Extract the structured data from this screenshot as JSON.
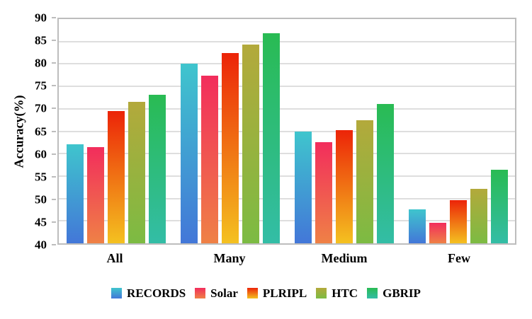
{
  "colors": {
    "background": "#ffffff",
    "plot_border": "#bdbdbd",
    "gridline": "#dedede",
    "text": "#000000"
  },
  "chart_data": {
    "type": "bar",
    "title": "",
    "xlabel": "",
    "ylabel": "Accuracy(%)",
    "ylim": [
      40,
      90
    ],
    "yticks": [
      40,
      45,
      50,
      55,
      60,
      65,
      70,
      75,
      80,
      85,
      90
    ],
    "grid": true,
    "legend_position": "bottom",
    "categories": [
      "All",
      "Many",
      "Medium",
      "Few"
    ],
    "series": [
      {
        "name": "RECORDS",
        "color_top": "#3fc5cd",
        "color_bottom": "#4377d8",
        "values": [
          62.1,
          80.0,
          65.0,
          47.5
        ]
      },
      {
        "name": "Solar",
        "color_top": "#f22d5c",
        "color_bottom": "#ef8146",
        "values": [
          61.5,
          77.4,
          62.6,
          44.5
        ]
      },
      {
        "name": "PLRIPL",
        "color_top": "#ec2408",
        "color_bottom": "#f4c120",
        "values": [
          69.5,
          82.4,
          65.3,
          49.7
        ]
      },
      {
        "name": "HTC",
        "color_top": "#b3a93b",
        "color_bottom": "#7cbb43",
        "values": [
          71.6,
          84.4,
          67.4,
          52.2
        ]
      },
      {
        "name": "GBRIP",
        "color_top": "#29bb53",
        "color_bottom": "#33bda6",
        "values": [
          73.2,
          86.8,
          71.0,
          56.4
        ]
      }
    ]
  }
}
